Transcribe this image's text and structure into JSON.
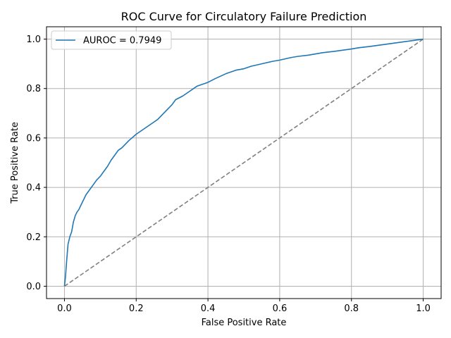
{
  "chart_data": {
    "type": "line",
    "title": "ROC Curve for Circulatory Failure Prediction",
    "xlabel": "False Positive Rate",
    "ylabel": "True Positive Rate",
    "xlim": [
      -0.05,
      1.05
    ],
    "ylim": [
      -0.05,
      1.05
    ],
    "xticks": [
      0.0,
      0.2,
      0.4,
      0.6,
      0.8,
      1.0
    ],
    "yticks": [
      0.0,
      0.2,
      0.4,
      0.6,
      0.8,
      1.0
    ],
    "xtick_labels": [
      "0.0",
      "0.2",
      "0.4",
      "0.6",
      "0.8",
      "1.0"
    ],
    "ytick_labels": [
      "0.0",
      "0.2",
      "0.4",
      "0.6",
      "0.8",
      "1.0"
    ],
    "grid": true,
    "legend_position": "top-left",
    "series": [
      {
        "name": "AUROC = 0.7949",
        "color": "#1f77b4",
        "style": "solid",
        "x": [
          0.0,
          0.003,
          0.006,
          0.01,
          0.015,
          0.02,
          0.025,
          0.03,
          0.035,
          0.04,
          0.05,
          0.06,
          0.07,
          0.08,
          0.09,
          0.1,
          0.11,
          0.12,
          0.13,
          0.14,
          0.15,
          0.16,
          0.17,
          0.18,
          0.2,
          0.22,
          0.24,
          0.25,
          0.26,
          0.27,
          0.28,
          0.29,
          0.3,
          0.31,
          0.33,
          0.35,
          0.37,
          0.39,
          0.4,
          0.42,
          0.45,
          0.48,
          0.5,
          0.52,
          0.55,
          0.58,
          0.6,
          0.63,
          0.65,
          0.68,
          0.7,
          0.72,
          0.75,
          0.8,
          0.82,
          0.85,
          0.9,
          0.95,
          1.0
        ],
        "y": [
          0.0,
          0.04,
          0.1,
          0.17,
          0.2,
          0.22,
          0.26,
          0.285,
          0.3,
          0.31,
          0.34,
          0.37,
          0.39,
          0.41,
          0.43,
          0.445,
          0.465,
          0.485,
          0.51,
          0.53,
          0.55,
          0.56,
          0.575,
          0.59,
          0.615,
          0.635,
          0.655,
          0.665,
          0.675,
          0.69,
          0.705,
          0.72,
          0.735,
          0.755,
          0.77,
          0.79,
          0.81,
          0.82,
          0.825,
          0.84,
          0.86,
          0.875,
          0.88,
          0.89,
          0.9,
          0.91,
          0.915,
          0.925,
          0.93,
          0.935,
          0.94,
          0.945,
          0.95,
          0.96,
          0.965,
          0.97,
          0.98,
          0.99,
          1.0
        ]
      },
      {
        "name": "",
        "color": "#808080",
        "style": "dashed",
        "x": [
          0.0,
          1.0
        ],
        "y": [
          0.0,
          1.0
        ]
      }
    ]
  }
}
